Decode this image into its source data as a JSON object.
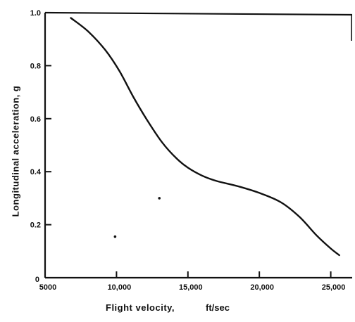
{
  "chart_data": {
    "type": "line",
    "xlabel": "Flight velocity,",
    "xunit": "ft/sec",
    "ylabel": "Longitudinal acceleration, g",
    "xlim": [
      5000,
      26500
    ],
    "ylim": [
      0,
      1.0
    ],
    "x_ticks": [
      5000,
      10000,
      15000,
      20000,
      25000
    ],
    "x_tick_labels": [
      "5000",
      "10,000",
      "15,000",
      "20,000",
      "25,000"
    ],
    "y_ticks": [
      0.2,
      0.4,
      0.6,
      0.8,
      1.0
    ],
    "y_tick_labels": [
      "0.2",
      "0.4",
      "0.6",
      "0.8",
      "1.0"
    ],
    "origin_label": "0",
    "grid": false,
    "series": [
      {
        "color": "#111111",
        "points": [
          [
            6800,
            0.98
          ],
          [
            8000,
            0.93
          ],
          [
            9200,
            0.86
          ],
          [
            10200,
            0.78
          ],
          [
            11200,
            0.68
          ],
          [
            12200,
            0.59
          ],
          [
            13200,
            0.51
          ],
          [
            14200,
            0.45
          ],
          [
            15000,
            0.415
          ],
          [
            16000,
            0.385
          ],
          [
            17000,
            0.365
          ],
          [
            18500,
            0.345
          ],
          [
            20000,
            0.32
          ],
          [
            21500,
            0.285
          ],
          [
            22800,
            0.23
          ],
          [
            24000,
            0.16
          ],
          [
            25000,
            0.11
          ],
          [
            25600,
            0.085
          ]
        ]
      }
    ],
    "stray_marks": [
      [
        13000,
        0.3
      ],
      [
        9900,
        0.155
      ]
    ]
  }
}
